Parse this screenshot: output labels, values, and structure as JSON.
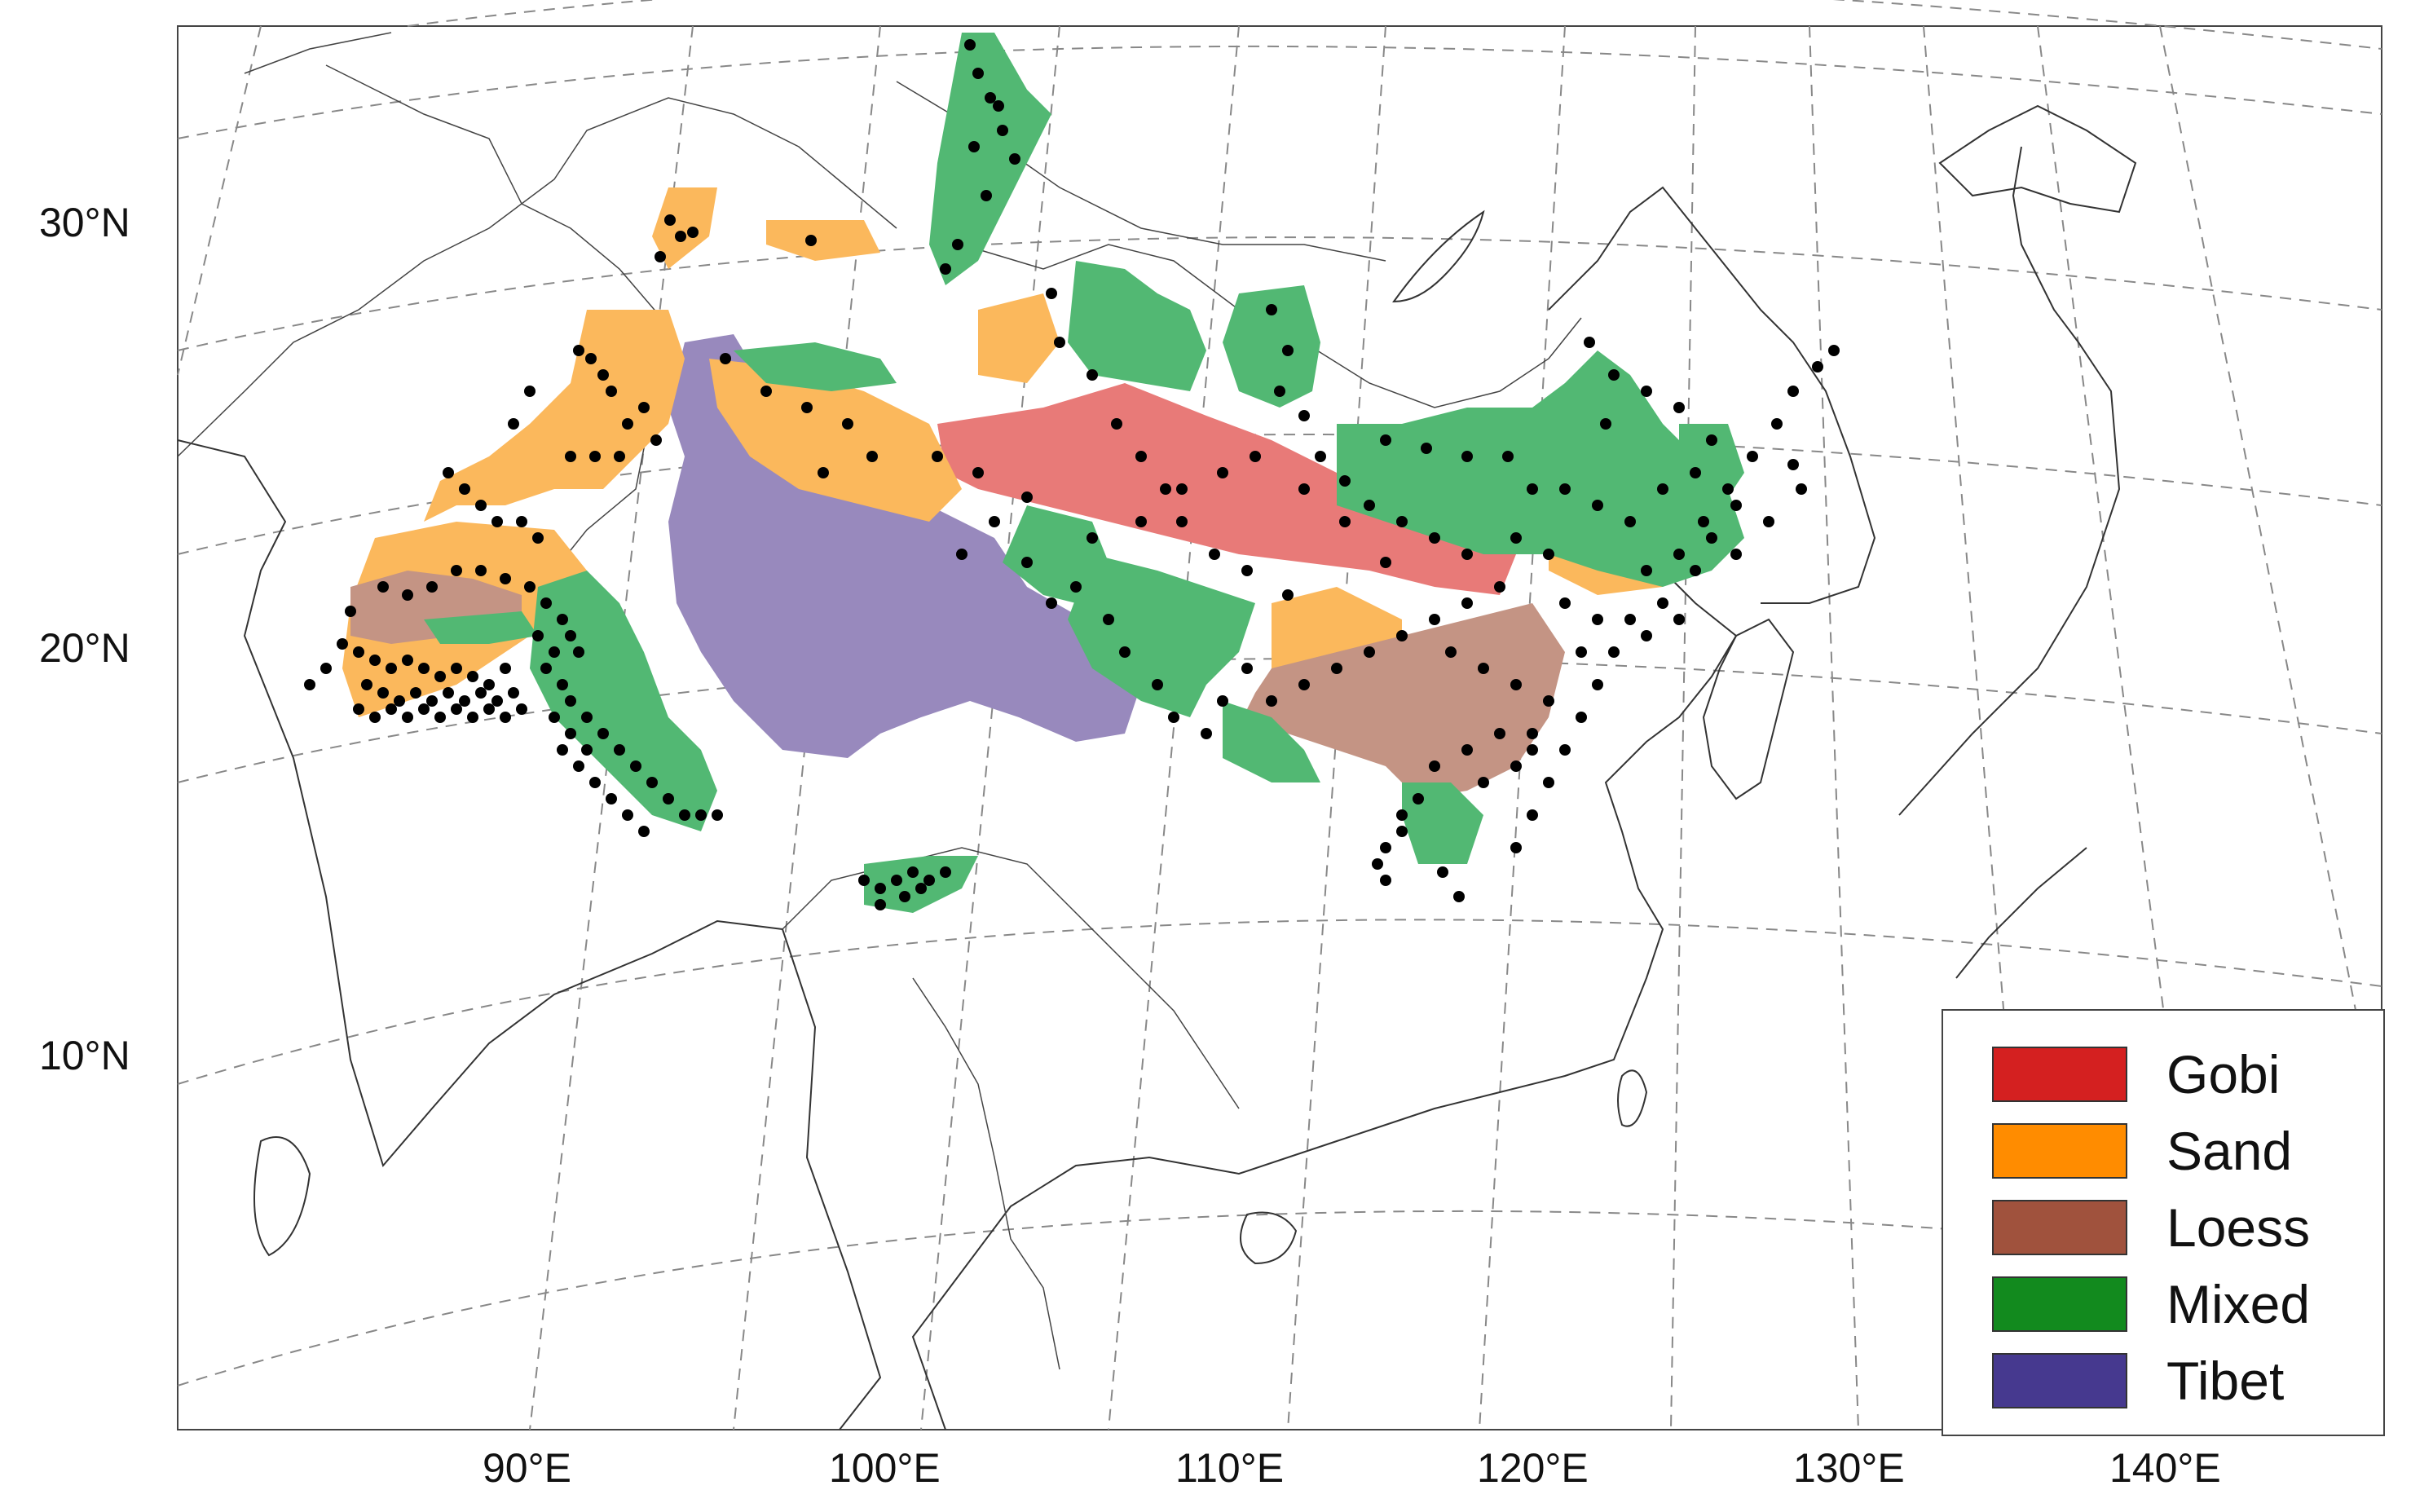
{
  "map": {
    "lat_labels": [
      "30°N",
      "20°N",
      "10°N"
    ],
    "lon_labels": [
      "90°E",
      "100°E",
      "110°E",
      "120°E",
      "130°E",
      "140°E"
    ]
  },
  "legend": {
    "items": [
      {
        "label": "Gobi",
        "color": "#d42020"
      },
      {
        "label": "Sand",
        "color": "#ff8c00"
      },
      {
        "label": "Loess",
        "color": "#a0523d"
      },
      {
        "label": "Mixed",
        "color": "#128a1e"
      },
      {
        "label": "Tibet",
        "color": "#46398f"
      }
    ]
  },
  "region_fill_colors": {
    "gobi": "#e87a78",
    "sand": "#fbb85c",
    "loess": "#c49484",
    "mixed": "#52b873",
    "tibet": "#9889bd"
  },
  "station_color": "#000000"
}
